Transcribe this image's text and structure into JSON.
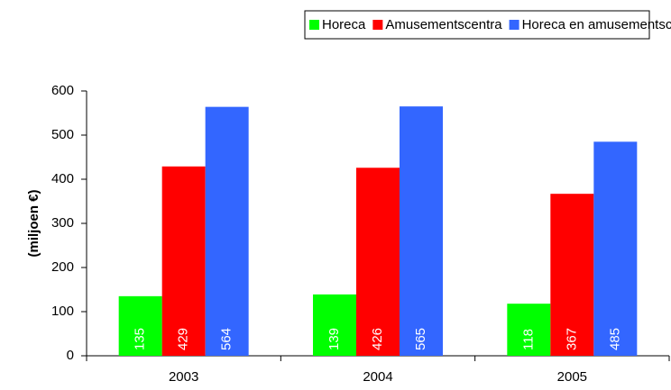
{
  "chart_data": {
    "type": "bar",
    "y_label": "(miljoen €)",
    "categories": [
      "2003",
      "2004",
      "2005"
    ],
    "series": [
      {
        "name": "Horeca",
        "color": "#00ff00",
        "values": [
          135,
          139,
          118
        ]
      },
      {
        "name": "Amusementscentra",
        "color": "#ff0000",
        "values": [
          429,
          426,
          367
        ]
      },
      {
        "name": "Horeca en amusementscentra",
        "color": "#3366ff",
        "values": [
          564,
          565,
          485
        ]
      }
    ],
    "ylim": [
      0,
      600
    ],
    "yticks": [
      0,
      100,
      200,
      300,
      400,
      500,
      600
    ],
    "legend": "top",
    "data_labels": true
  }
}
